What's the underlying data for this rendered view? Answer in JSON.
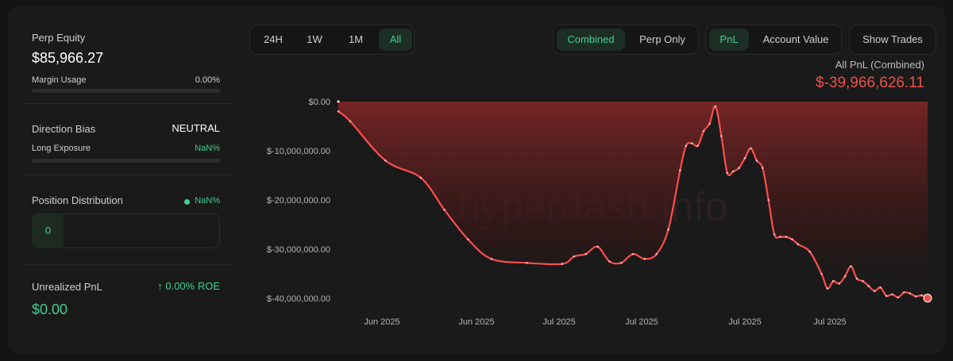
{
  "left_panel": {
    "perp_equity_label": "Perp Equity",
    "perp_equity_value": "$85,966.27",
    "margin_usage_label": "Margin Usage",
    "margin_usage_value": "0.00%",
    "margin_usage_fraction": 0,
    "direction_bias_label": "Direction Bias",
    "direction_bias_value": "NEUTRAL",
    "long_exposure_label": "Long Exposure",
    "long_exposure_value": "NaN%",
    "position_distribution_label": "Position Distribution",
    "position_distribution_value": "NaN%",
    "position_count": "0",
    "unrealized_pnl_label": "Unrealized PnL",
    "roe_value": "↑ 0.00% ROE",
    "unrealized_pnl_value": "$0.00"
  },
  "toolbar": {
    "ranges": [
      "24H",
      "1W",
      "1M",
      "All"
    ],
    "active_range": "All",
    "modes": [
      "Combined",
      "Perp Only"
    ],
    "active_mode": "Combined",
    "metrics": [
      "PnL",
      "Account Value"
    ],
    "active_metric": "PnL",
    "show_trades_label": "Show Trades"
  },
  "summary": {
    "label": "All PnL (Combined)",
    "value": "$-39,966,626.11"
  },
  "watermark": "hyperdash.info",
  "colors": {
    "accent_green": "#3fcf8e",
    "loss_red": "#f0504a",
    "line_red": "#ff4d4d",
    "background": "#1a1a1a"
  },
  "chart_data": {
    "type": "area",
    "y_ticks": [
      "$0.00",
      "$-10,000,000.00",
      "$-20,000,000.00",
      "$-30,000,000.00",
      "$-40,000,000.00"
    ],
    "x_ticks": [
      "Jun 2025",
      "Jun 2025",
      "Jul 2025",
      "Jul 2025",
      "Jul 2025",
      "Jul 2025"
    ],
    "ylim": [
      -40000000,
      0
    ],
    "xlim": [
      0,
      100
    ],
    "x": [
      0,
      2,
      8,
      14,
      18,
      22,
      26,
      32,
      38,
      40,
      42,
      44,
      46,
      48,
      50,
      52,
      54,
      56,
      58,
      59,
      60,
      61,
      62,
      63,
      64,
      65,
      66,
      67,
      68,
      69,
      70,
      71,
      72,
      73,
      74,
      75,
      76,
      77,
      78,
      80,
      82,
      83,
      84,
      85,
      86,
      87,
      88,
      89,
      90,
      91,
      92,
      93,
      94,
      95,
      96,
      97,
      98,
      99,
      100
    ],
    "y": [
      -2000000,
      -4000000,
      -12000000,
      -15500000,
      -22000000,
      -28000000,
      -32000000,
      -32800000,
      -33000000,
      -31500000,
      -31000000,
      -29500000,
      -32500000,
      -32800000,
      -31000000,
      -32000000,
      -31000000,
      -26000000,
      -14000000,
      -9000000,
      -8500000,
      -9000000,
      -6000000,
      -4500000,
      -1000000,
      -7000000,
      -14500000,
      -14200000,
      -13500000,
      -11500000,
      -9500000,
      -12000000,
      -13500000,
      -20000000,
      -27000000,
      -27500000,
      -27500000,
      -28000000,
      -29000000,
      -30500000,
      -35000000,
      -38000000,
      -36500000,
      -37000000,
      -35500000,
      -33500000,
      -36000000,
      -36500000,
      -37500000,
      -38500000,
      -37800000,
      -39500000,
      -39200000,
      -39800000,
      -38800000,
      -39000000,
      -39600000,
      -39400000,
      -39966626
    ]
  }
}
